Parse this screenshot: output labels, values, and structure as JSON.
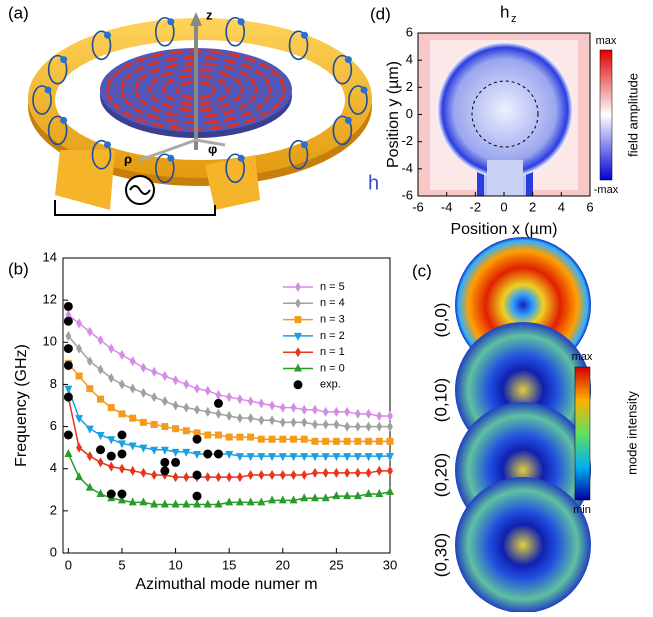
{
  "panel_a": {
    "label": "(a)",
    "axis_z": "z",
    "axis_rho": "ρ",
    "axis_phi": "φ",
    "field": "h"
  },
  "panel_c": {
    "label": "(c)",
    "modes": [
      "(0,0)",
      "(0,10)",
      "(0,20)",
      "(0,30)"
    ],
    "colorbar_max": "max",
    "colorbar_min": "min",
    "colorbar_label": "mode intensity"
  },
  "chart_data": [
    {
      "type": "line",
      "panel_label": "(b)",
      "xlabel": "Azimuthal mode numer m",
      "ylabel": "Frequency (GHz)",
      "x": [
        0,
        1,
        2,
        3,
        4,
        5,
        6,
        7,
        8,
        9,
        10,
        11,
        12,
        13,
        14,
        15,
        16,
        17,
        18,
        19,
        20,
        21,
        22,
        23,
        24,
        25,
        26,
        27,
        28,
        29,
        30
      ],
      "xlim": [
        -0.5,
        30
      ],
      "ylim": [
        0,
        14
      ],
      "xticks": [
        0,
        5,
        10,
        15,
        20,
        25,
        30
      ],
      "yticks": [
        0,
        2,
        4,
        6,
        8,
        10,
        12,
        14
      ],
      "grid": false,
      "legend": "upper right",
      "series": [
        {
          "name": "n = 5",
          "color": "#d58ce6",
          "marker": "diamond",
          "values": [
            11.3,
            10.9,
            10.5,
            10.1,
            9.7,
            9.4,
            9.1,
            8.8,
            8.6,
            8.4,
            8.2,
            8.0,
            7.8,
            7.7,
            7.5,
            7.4,
            7.3,
            7.2,
            7.1,
            7.0,
            6.9,
            6.9,
            6.8,
            6.8,
            6.7,
            6.7,
            6.7,
            6.6,
            6.6,
            6.5,
            6.5
          ]
        },
        {
          "name": "n = 4",
          "color": "#a0a0a0",
          "marker": "diamond",
          "values": [
            10.3,
            9.7,
            9.1,
            8.7,
            8.3,
            8.0,
            7.8,
            7.6,
            7.4,
            7.2,
            7.0,
            6.9,
            6.8,
            6.7,
            6.6,
            6.5,
            6.4,
            6.4,
            6.3,
            6.3,
            6.2,
            6.2,
            6.2,
            6.1,
            6.1,
            6.1,
            6.0,
            6.0,
            6.0,
            6.0,
            6.0
          ]
        },
        {
          "name": "n = 3",
          "color": "#f59a1a",
          "marker": "square",
          "values": [
            9.0,
            8.4,
            7.8,
            7.3,
            6.9,
            6.6,
            6.4,
            6.2,
            6.1,
            6.0,
            5.9,
            5.8,
            5.7,
            5.6,
            5.6,
            5.5,
            5.5,
            5.5,
            5.4,
            5.4,
            5.4,
            5.4,
            5.4,
            5.3,
            5.3,
            5.3,
            5.3,
            5.3,
            5.3,
            5.3,
            5.3
          ]
        },
        {
          "name": "n = 2",
          "color": "#1a9fe0",
          "marker": "triangle-down",
          "values": [
            7.8,
            6.4,
            5.9,
            5.6,
            5.4,
            5.2,
            5.1,
            5.0,
            4.9,
            4.9,
            4.8,
            4.8,
            4.7,
            4.7,
            4.7,
            4.7,
            4.6,
            4.6,
            4.6,
            4.6,
            4.6,
            4.6,
            4.6,
            4.6,
            4.6,
            4.6,
            4.6,
            4.6,
            4.6,
            4.6,
            4.6
          ]
        },
        {
          "name": "n = 1",
          "color": "#e8341c",
          "marker": "diamond",
          "values": [
            7.4,
            5.0,
            4.6,
            4.3,
            4.1,
            4.0,
            3.9,
            3.8,
            3.7,
            3.7,
            3.6,
            3.6,
            3.6,
            3.6,
            3.6,
            3.6,
            3.6,
            3.7,
            3.7,
            3.7,
            3.7,
            3.7,
            3.7,
            3.8,
            3.8,
            3.8,
            3.8,
            3.8,
            3.8,
            3.9,
            3.9
          ]
        },
        {
          "name": "n = 0",
          "color": "#2a9a2a",
          "marker": "triangle-up",
          "values": [
            4.7,
            3.6,
            3.1,
            2.8,
            2.6,
            2.5,
            2.4,
            2.4,
            2.3,
            2.3,
            2.3,
            2.3,
            2.3,
            2.3,
            2.3,
            2.4,
            2.4,
            2.4,
            2.4,
            2.5,
            2.5,
            2.5,
            2.6,
            2.6,
            2.6,
            2.7,
            2.7,
            2.7,
            2.8,
            2.8,
            2.9
          ]
        },
        {
          "name": "exp.",
          "color": "#000000",
          "marker": "circle",
          "line": false,
          "x": [
            0,
            0,
            0,
            0,
            0,
            0,
            4,
            5,
            5,
            5,
            3,
            4,
            9,
            10,
            9,
            12,
            12,
            12,
            13,
            14,
            14
          ],
          "values": [
            11.7,
            11.0,
            9.7,
            8.9,
            7.4,
            5.6,
            2.8,
            2.8,
            5.6,
            4.7,
            4.9,
            4.6,
            4.3,
            4.3,
            3.9,
            2.7,
            3.7,
            5.4,
            4.7,
            4.7,
            7.1
          ]
        }
      ]
    },
    {
      "type": "heatmap",
      "panel_label": "(d)",
      "title": "h",
      "title_sub": "z",
      "xlabel": "Position x (µm)",
      "ylabel": "Position y (µm)",
      "xlim": [
        -6,
        6
      ],
      "ylim": [
        -6,
        6
      ],
      "xticks": [
        -6,
        -4,
        -2,
        0,
        2,
        4,
        6
      ],
      "yticks": [
        -6,
        -4,
        -2,
        0,
        2,
        4,
        6
      ],
      "colorbar_max": "max",
      "colorbar_min": "-max",
      "colorbar_label": "field amplitude"
    }
  ]
}
